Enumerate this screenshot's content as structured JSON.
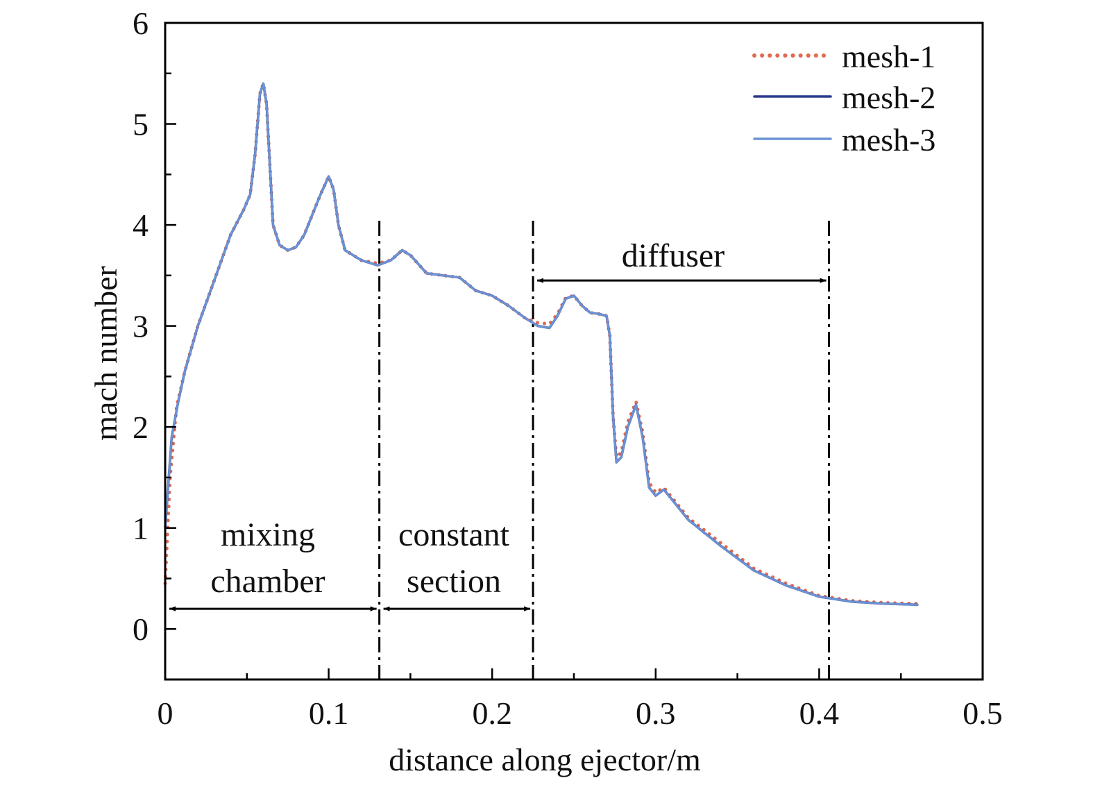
{
  "chart_data": {
    "type": "line",
    "title": "",
    "xlabel": "distance along ejector/m",
    "ylabel": "mach number",
    "xlim": [
      0,
      0.5
    ],
    "ylim": [
      -0.5,
      6
    ],
    "x_ticks": [
      0,
      0.1,
      0.2,
      0.3,
      0.4,
      0.5
    ],
    "x_tick_labels": [
      "0",
      "0.1",
      "0.2",
      "0.3",
      "0.4",
      "0.5"
    ],
    "y_ticks": [
      0,
      1,
      2,
      3,
      4,
      5,
      6
    ],
    "y_tick_labels": [
      "0",
      "1",
      "2",
      "3",
      "4",
      "5",
      "6"
    ],
    "grid": false,
    "legend_position": "top-right",
    "series": [
      {
        "name": "mesh-1",
        "color": "#e06a4f",
        "style": "dotted",
        "points": [
          [
            0.0,
            0.45
          ],
          [
            0.003,
            1.5
          ],
          [
            0.007,
            2.2
          ],
          [
            0.012,
            2.55
          ],
          [
            0.02,
            3.0
          ],
          [
            0.03,
            3.45
          ],
          [
            0.04,
            3.9
          ],
          [
            0.048,
            4.15
          ],
          [
            0.052,
            4.3
          ],
          [
            0.055,
            4.7
          ],
          [
            0.058,
            5.3
          ],
          [
            0.06,
            5.4
          ],
          [
            0.062,
            5.2
          ],
          [
            0.064,
            4.6
          ],
          [
            0.066,
            4.0
          ],
          [
            0.07,
            3.8
          ],
          [
            0.075,
            3.75
          ],
          [
            0.08,
            3.78
          ],
          [
            0.085,
            3.9
          ],
          [
            0.09,
            4.1
          ],
          [
            0.095,
            4.3
          ],
          [
            0.1,
            4.48
          ],
          [
            0.103,
            4.35
          ],
          [
            0.106,
            4.0
          ],
          [
            0.11,
            3.75
          ],
          [
            0.12,
            3.65
          ],
          [
            0.13,
            3.62
          ],
          [
            0.138,
            3.65
          ],
          [
            0.145,
            3.75
          ],
          [
            0.15,
            3.7
          ],
          [
            0.16,
            3.52
          ],
          [
            0.17,
            3.5
          ],
          [
            0.18,
            3.48
          ],
          [
            0.19,
            3.35
          ],
          [
            0.2,
            3.3
          ],
          [
            0.21,
            3.2
          ],
          [
            0.22,
            3.08
          ],
          [
            0.228,
            3.03
          ],
          [
            0.235,
            3.02
          ],
          [
            0.24,
            3.12
          ],
          [
            0.245,
            3.28
          ],
          [
            0.25,
            3.3
          ],
          [
            0.255,
            3.2
          ],
          [
            0.26,
            3.13
          ],
          [
            0.265,
            3.12
          ],
          [
            0.27,
            3.1
          ],
          [
            0.272,
            2.9
          ],
          [
            0.274,
            2.1
          ],
          [
            0.276,
            1.7
          ],
          [
            0.279,
            1.75
          ],
          [
            0.283,
            2.05
          ],
          [
            0.288,
            2.25
          ],
          [
            0.292,
            1.95
          ],
          [
            0.296,
            1.45
          ],
          [
            0.3,
            1.35
          ],
          [
            0.305,
            1.4
          ],
          [
            0.31,
            1.3
          ],
          [
            0.32,
            1.1
          ],
          [
            0.34,
            0.85
          ],
          [
            0.36,
            0.6
          ],
          [
            0.38,
            0.45
          ],
          [
            0.4,
            0.33
          ],
          [
            0.42,
            0.28
          ],
          [
            0.44,
            0.26
          ],
          [
            0.46,
            0.25
          ]
        ]
      },
      {
        "name": "mesh-2",
        "color": "#2c3a8c",
        "style": "solid",
        "points": [
          [
            0.0,
            1.0
          ],
          [
            0.004,
            1.9
          ],
          [
            0.008,
            2.25
          ],
          [
            0.012,
            2.55
          ],
          [
            0.02,
            3.0
          ],
          [
            0.03,
            3.45
          ],
          [
            0.04,
            3.9
          ],
          [
            0.048,
            4.15
          ],
          [
            0.052,
            4.3
          ],
          [
            0.055,
            4.7
          ],
          [
            0.058,
            5.3
          ],
          [
            0.06,
            5.4
          ],
          [
            0.062,
            5.2
          ],
          [
            0.064,
            4.6
          ],
          [
            0.066,
            4.0
          ],
          [
            0.07,
            3.8
          ],
          [
            0.075,
            3.75
          ],
          [
            0.08,
            3.78
          ],
          [
            0.085,
            3.9
          ],
          [
            0.09,
            4.1
          ],
          [
            0.095,
            4.3
          ],
          [
            0.1,
            4.48
          ],
          [
            0.103,
            4.35
          ],
          [
            0.106,
            4.0
          ],
          [
            0.11,
            3.75
          ],
          [
            0.12,
            3.65
          ],
          [
            0.13,
            3.6
          ],
          [
            0.138,
            3.65
          ],
          [
            0.145,
            3.75
          ],
          [
            0.15,
            3.7
          ],
          [
            0.16,
            3.52
          ],
          [
            0.17,
            3.5
          ],
          [
            0.18,
            3.48
          ],
          [
            0.19,
            3.35
          ],
          [
            0.2,
            3.3
          ],
          [
            0.21,
            3.2
          ],
          [
            0.22,
            3.08
          ],
          [
            0.228,
            3.0
          ],
          [
            0.235,
            2.98
          ],
          [
            0.24,
            3.1
          ],
          [
            0.245,
            3.27
          ],
          [
            0.25,
            3.3
          ],
          [
            0.255,
            3.2
          ],
          [
            0.26,
            3.13
          ],
          [
            0.265,
            3.12
          ],
          [
            0.27,
            3.1
          ],
          [
            0.272,
            2.9
          ],
          [
            0.274,
            2.1
          ],
          [
            0.276,
            1.65
          ],
          [
            0.279,
            1.7
          ],
          [
            0.283,
            2.0
          ],
          [
            0.288,
            2.22
          ],
          [
            0.292,
            1.9
          ],
          [
            0.296,
            1.4
          ],
          [
            0.3,
            1.32
          ],
          [
            0.305,
            1.38
          ],
          [
            0.31,
            1.28
          ],
          [
            0.32,
            1.08
          ],
          [
            0.34,
            0.82
          ],
          [
            0.36,
            0.58
          ],
          [
            0.38,
            0.43
          ],
          [
            0.4,
            0.32
          ],
          [
            0.42,
            0.27
          ],
          [
            0.44,
            0.25
          ],
          [
            0.46,
            0.24
          ]
        ]
      },
      {
        "name": "mesh-3",
        "color": "#6b93d6",
        "style": "solid",
        "points": [
          [
            0.0,
            1.0
          ],
          [
            0.004,
            1.9
          ],
          [
            0.008,
            2.25
          ],
          [
            0.012,
            2.55
          ],
          [
            0.02,
            3.0
          ],
          [
            0.03,
            3.45
          ],
          [
            0.04,
            3.9
          ],
          [
            0.048,
            4.15
          ],
          [
            0.052,
            4.3
          ],
          [
            0.055,
            4.7
          ],
          [
            0.058,
            5.3
          ],
          [
            0.06,
            5.4
          ],
          [
            0.062,
            5.2
          ],
          [
            0.064,
            4.6
          ],
          [
            0.066,
            4.0
          ],
          [
            0.07,
            3.8
          ],
          [
            0.075,
            3.75
          ],
          [
            0.08,
            3.78
          ],
          [
            0.085,
            3.9
          ],
          [
            0.09,
            4.1
          ],
          [
            0.095,
            4.3
          ],
          [
            0.1,
            4.48
          ],
          [
            0.103,
            4.35
          ],
          [
            0.106,
            4.0
          ],
          [
            0.11,
            3.75
          ],
          [
            0.12,
            3.65
          ],
          [
            0.13,
            3.6
          ],
          [
            0.138,
            3.65
          ],
          [
            0.145,
            3.75
          ],
          [
            0.15,
            3.7
          ],
          [
            0.16,
            3.52
          ],
          [
            0.17,
            3.5
          ],
          [
            0.18,
            3.48
          ],
          [
            0.19,
            3.35
          ],
          [
            0.2,
            3.3
          ],
          [
            0.21,
            3.2
          ],
          [
            0.22,
            3.08
          ],
          [
            0.228,
            3.0
          ],
          [
            0.235,
            2.98
          ],
          [
            0.24,
            3.1
          ],
          [
            0.245,
            3.27
          ],
          [
            0.25,
            3.3
          ],
          [
            0.255,
            3.2
          ],
          [
            0.26,
            3.13
          ],
          [
            0.265,
            3.12
          ],
          [
            0.27,
            3.1
          ],
          [
            0.272,
            2.9
          ],
          [
            0.274,
            2.1
          ],
          [
            0.276,
            1.65
          ],
          [
            0.279,
            1.7
          ],
          [
            0.283,
            2.0
          ],
          [
            0.288,
            2.22
          ],
          [
            0.292,
            1.9
          ],
          [
            0.296,
            1.4
          ],
          [
            0.3,
            1.32
          ],
          [
            0.305,
            1.38
          ],
          [
            0.31,
            1.28
          ],
          [
            0.32,
            1.08
          ],
          [
            0.34,
            0.82
          ],
          [
            0.36,
            0.58
          ],
          [
            0.38,
            0.43
          ],
          [
            0.4,
            0.32
          ],
          [
            0.42,
            0.27
          ],
          [
            0.44,
            0.25
          ],
          [
            0.46,
            0.24
          ]
        ]
      }
    ],
    "boundaries": [
      0.131,
      0.225,
      0.406
    ],
    "regions": [
      {
        "lines": [
          "mixing",
          "chamber"
        ],
        "from": 0.0,
        "to": 0.131,
        "arrow_y": 0.2
      },
      {
        "lines": [
          "constant",
          "section"
        ],
        "from": 0.131,
        "to": 0.225,
        "arrow_y": 0.2
      },
      {
        "lines": [
          "diffuser"
        ],
        "from": 0.225,
        "to": 0.406,
        "arrow_y": 3.45
      }
    ]
  }
}
